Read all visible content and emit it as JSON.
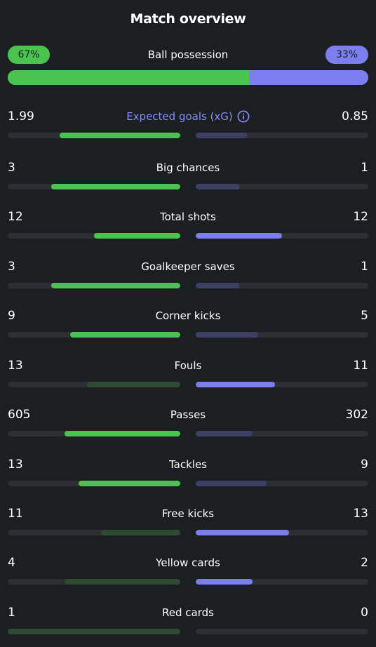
{
  "title": "Match overview",
  "possession": {
    "label": "Ball possession",
    "home": "67%",
    "away": "33%",
    "home_pct": 67
  },
  "colors": {
    "home_strong": "#4bc34f",
    "home_weak": "#2e4a31",
    "away_strong": "#7b7eef",
    "away_weak": "#3d4064"
  },
  "stats": [
    {
      "label": "Expected goals (xG)",
      "home": "1.99",
      "away": "0.85",
      "home_frac": 0.7,
      "away_frac": 0.3,
      "info_icon": "info-icon",
      "highlight": "home"
    },
    {
      "label": "Big chances",
      "home": "3",
      "away": "1",
      "home_frac": 0.75,
      "away_frac": 0.25,
      "highlight": "home"
    },
    {
      "label": "Total shots",
      "home": "12",
      "away": "12",
      "home_frac": 0.5,
      "away_frac": 0.5,
      "highlight": "both"
    },
    {
      "label": "Goalkeeper saves",
      "home": "3",
      "away": "1",
      "home_frac": 0.75,
      "away_frac": 0.25,
      "highlight": "home"
    },
    {
      "label": "Corner kicks",
      "home": "9",
      "away": "5",
      "home_frac": 0.64,
      "away_frac": 0.36,
      "highlight": "home"
    },
    {
      "label": "Fouls",
      "home": "13",
      "away": "11",
      "home_frac": 0.54,
      "away_frac": 0.46,
      "highlight": "away"
    },
    {
      "label": "Passes",
      "home": "605",
      "away": "302",
      "home_frac": 0.67,
      "away_frac": 0.33,
      "highlight": "home"
    },
    {
      "label": "Tackles",
      "home": "13",
      "away": "9",
      "home_frac": 0.59,
      "away_frac": 0.41,
      "highlight": "home"
    },
    {
      "label": "Free kicks",
      "home": "11",
      "away": "13",
      "home_frac": 0.46,
      "away_frac": 0.54,
      "highlight": "away"
    },
    {
      "label": "Yellow cards",
      "home": "4",
      "away": "2",
      "home_frac": 0.67,
      "away_frac": 0.33,
      "highlight": "away"
    },
    {
      "label": "Red cards",
      "home": "1",
      "away": "0",
      "home_frac": 1.0,
      "away_frac": 0.0,
      "highlight": "none"
    }
  ]
}
